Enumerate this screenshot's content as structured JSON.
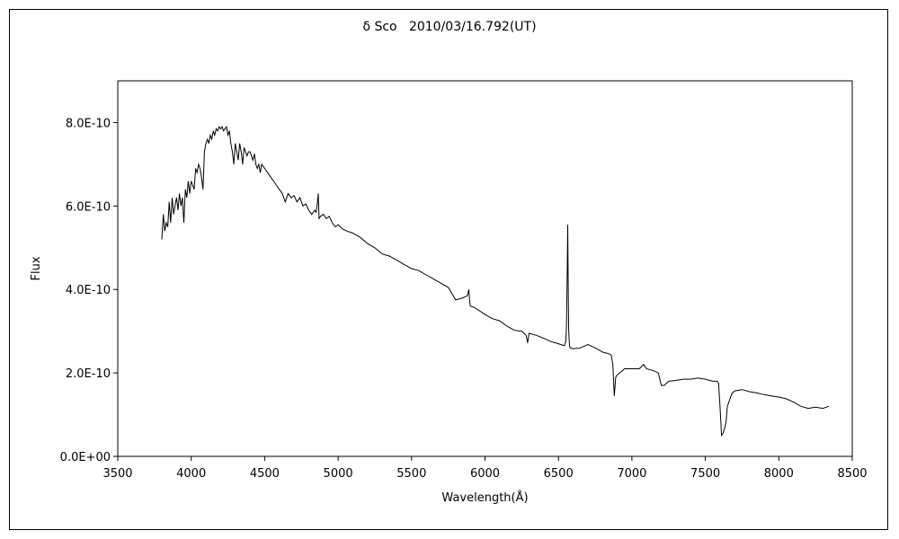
{
  "chart_data": {
    "type": "line",
    "title": "δ Sco   2010/03/16.792(UT)",
    "xlabel": "Wavelength(Å)",
    "ylabel": "Flux",
    "xlim": [
      3500,
      8500
    ],
    "ylim": [
      0,
      9e-10
    ],
    "x_ticks": [
      3500,
      4000,
      4500,
      5000,
      5500,
      6000,
      6500,
      7000,
      7500,
      8000,
      8500
    ],
    "x_tick_labels": [
      "3500",
      "4000",
      "4500",
      "5000",
      "5500",
      "6000",
      "6500",
      "7000",
      "7500",
      "8000",
      "8500"
    ],
    "y_ticks": [
      0,
      2e-10,
      4e-10,
      6e-10,
      8e-10
    ],
    "y_tick_labels": [
      "0.0E+00",
      "2.0E-10",
      "4.0E-10",
      "6.0E-10",
      "8.0E-10"
    ],
    "grid": false,
    "legend": "none",
    "line_color": "#000000",
    "series": [
      {
        "x": [
          3800,
          3810,
          3820,
          3830,
          3840,
          3850,
          3860,
          3870,
          3880,
          3890,
          3900,
          3910,
          3920,
          3930,
          3940,
          3950,
          3960,
          3970,
          3980,
          3990,
          4000,
          4010,
          4020,
          4030,
          4040,
          4050,
          4060,
          4070,
          4080,
          4090,
          4100,
          4110,
          4120,
          4130,
          4140,
          4150,
          4160,
          4170,
          4180,
          4190,
          4200,
          4210,
          4220,
          4230,
          4240,
          4250,
          4260,
          4270,
          4280,
          4290,
          4300,
          4310,
          4320,
          4330,
          4340,
          4350,
          4360,
          4370,
          4380,
          4390,
          4400,
          4410,
          4420,
          4430,
          4440,
          4450,
          4460,
          4470,
          4480,
          4490,
          4500,
          4520,
          4540,
          4560,
          4580,
          4600,
          4620,
          4640,
          4660,
          4680,
          4700,
          4720,
          4740,
          4760,
          4780,
          4800,
          4820,
          4840,
          4850,
          4860,
          4865,
          4870,
          4880,
          4900,
          4920,
          4940,
          4960,
          4980,
          5000,
          5030,
          5060,
          5100,
          5150,
          5200,
          5250,
          5300,
          5350,
          5400,
          5450,
          5500,
          5550,
          5600,
          5650,
          5700,
          5750,
          5800,
          5850,
          5880,
          5890,
          5895,
          5900,
          5920,
          5950,
          6000,
          6050,
          6100,
          6150,
          6200,
          6250,
          6280,
          6290,
          6300,
          6350,
          6400,
          6450,
          6500,
          6540,
          6550,
          6555,
          6560,
          6563,
          6566,
          6570,
          6575,
          6580,
          6600,
          6650,
          6700,
          6750,
          6800,
          6850,
          6860,
          6870,
          6880,
          6890,
          6900,
          6950,
          7000,
          7050,
          7080,
          7100,
          7150,
          7180,
          7200,
          7220,
          7250,
          7300,
          7350,
          7400,
          7450,
          7500,
          7550,
          7580,
          7590,
          7600,
          7610,
          7620,
          7630,
          7640,
          7650,
          7680,
          7700,
          7750,
          7800,
          7850,
          7900,
          7950,
          8000,
          8050,
          8100,
          8150,
          8200,
          8250,
          8300,
          8340
        ],
        "y": [
          5.2e-10,
          5.8e-10,
          5.4e-10,
          5.6e-10,
          5.5e-10,
          6.1e-10,
          5.6e-10,
          6.2e-10,
          5.8e-10,
          6e-10,
          6.2e-10,
          5.9e-10,
          6.3e-10,
          6e-10,
          6.2e-10,
          5.6e-10,
          6.4e-10,
          6.2e-10,
          6.6e-10,
          6.3e-10,
          6.6e-10,
          6.5e-10,
          6.4e-10,
          6.9e-10,
          6.8e-10,
          7e-10,
          6.9e-10,
          6.7e-10,
          6.4e-10,
          7.3e-10,
          7.5e-10,
          7.6e-10,
          7.5e-10,
          7.7e-10,
          7.6e-10,
          7.8e-10,
          7.7e-10,
          7.85e-10,
          7.8e-10,
          7.9e-10,
          7.85e-10,
          7.9e-10,
          7.8e-10,
          7.85e-10,
          7.9e-10,
          7.7e-10,
          7.8e-10,
          7.5e-10,
          7.3e-10,
          7e-10,
          7.5e-10,
          7.3e-10,
          7.1e-10,
          7.5e-10,
          7.3e-10,
          7e-10,
          7.4e-10,
          7.3e-10,
          7.2e-10,
          7.3e-10,
          7.3e-10,
          7.2e-10,
          7.1e-10,
          7.25e-10,
          7e-10,
          6.9e-10,
          7e-10,
          6.8e-10,
          7e-10,
          6.95e-10,
          6.9e-10,
          6.8e-10,
          6.7e-10,
          6.6e-10,
          6.5e-10,
          6.4e-10,
          6.3e-10,
          6.1e-10,
          6.3e-10,
          6.2e-10,
          6.25e-10,
          6.1e-10,
          6.2e-10,
          6e-10,
          6.05e-10,
          5.9e-10,
          5.8e-10,
          5.9e-10,
          5.85e-10,
          6.1e-10,
          6.3e-10,
          5.7e-10,
          5.75e-10,
          5.8e-10,
          5.7e-10,
          5.75e-10,
          5.6e-10,
          5.5e-10,
          5.55e-10,
          5.45e-10,
          5.4e-10,
          5.35e-10,
          5.25e-10,
          5.1e-10,
          5e-10,
          4.85e-10,
          4.8e-10,
          4.7e-10,
          4.6e-10,
          4.5e-10,
          4.45e-10,
          4.35e-10,
          4.25e-10,
          4.15e-10,
          4.05e-10,
          3.75e-10,
          3.8e-10,
          3.85e-10,
          4e-10,
          3.75e-10,
          3.6e-10,
          3.58e-10,
          3.52e-10,
          3.4e-10,
          3.3e-10,
          3.25e-10,
          3.12e-10,
          3.02e-10,
          3e-10,
          2.9e-10,
          2.72e-10,
          2.95e-10,
          2.9e-10,
          2.83e-10,
          2.75e-10,
          2.7e-10,
          2.65e-10,
          2.75e-10,
          3.2e-10,
          4.5e-10,
          5.55e-10,
          4.2e-10,
          3e-10,
          2.65e-10,
          2.6e-10,
          2.58e-10,
          2.6e-10,
          2.68e-10,
          2.6e-10,
          2.5e-10,
          2.45e-10,
          2.42e-10,
          2.2e-10,
          1.45e-10,
          1.9e-10,
          1.95e-10,
          2.1e-10,
          2.1e-10,
          2.1e-10,
          2.2e-10,
          2.1e-10,
          2.05e-10,
          2e-10,
          1.7e-10,
          1.7e-10,
          1.8e-10,
          1.82e-10,
          1.85e-10,
          1.85e-10,
          1.88e-10,
          1.85e-10,
          1.8e-10,
          1.8e-10,
          1.75e-10,
          1.2e-10,
          5e-11,
          5.5e-11,
          6.5e-11,
          8e-11,
          1.2e-10,
          1.5e-10,
          1.57e-10,
          1.6e-10,
          1.55e-10,
          1.52e-10,
          1.48e-10,
          1.45e-10,
          1.42e-10,
          1.38e-10,
          1.3e-10,
          1.2e-10,
          1.15e-10,
          1.18e-10,
          1.15e-10,
          1.2e-10
        ]
      }
    ]
  }
}
